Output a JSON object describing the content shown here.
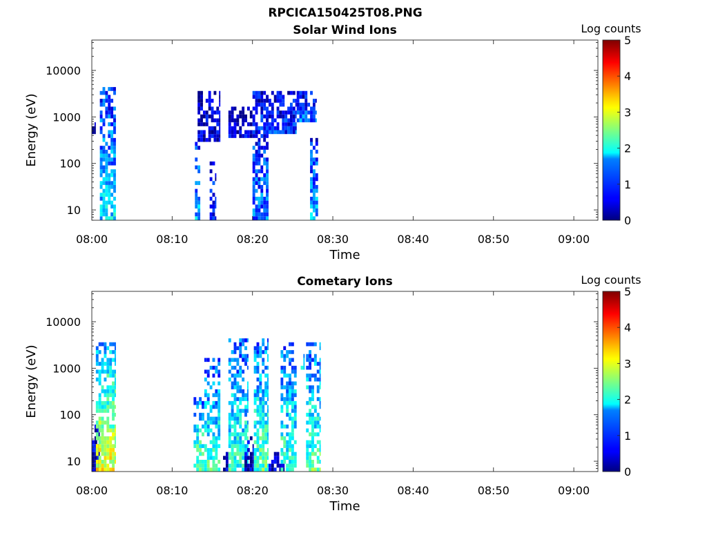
{
  "figure": {
    "title": "RPCICA150425T08.PNG"
  },
  "chart_data": [
    {
      "type": "heatmap",
      "title": "Solar Wind Ions",
      "xlabel": "Time",
      "ylabel": "Energy (eV)",
      "x_scale": "time",
      "y_scale": "log",
      "xlim": [
        "08:00",
        "09:03"
      ],
      "ylim": [
        6,
        45000
      ],
      "x_ticks": [
        "08:00",
        "08:10",
        "08:20",
        "08:30",
        "08:40",
        "08:50",
        "09:00"
      ],
      "y_ticks": [
        10,
        100,
        1000,
        10000
      ],
      "y_tick_labels": [
        "10",
        "100",
        "1000",
        "10000"
      ],
      "colorbar": {
        "label": "Log counts",
        "min": 0,
        "max": 5,
        "ticks": [
          "0",
          "1",
          "2",
          "3",
          "4",
          "5"
        ],
        "colormap": "jet"
      },
      "bursts": [
        {
          "t0": "08:00",
          "t1": "08:00:30",
          "e_min": 500,
          "e_max": 700,
          "level": 0.3
        },
        {
          "t0": "08:01",
          "t1": "08:03",
          "e_min": 6,
          "e_max": 4000,
          "level": 1.6
        },
        {
          "t0": "08:12:50",
          "t1": "08:13:30",
          "e_min": 6,
          "e_max": 300,
          "level": 1.4
        },
        {
          "t0": "08:13:10",
          "t1": "08:16",
          "e_min": 300,
          "e_max": 3000,
          "level": 0.4
        },
        {
          "t0": "08:14:40",
          "t1": "08:15:30",
          "e_min": 6,
          "e_max": 100,
          "level": 0.8
        },
        {
          "t0": "08:17",
          "t1": "08:20",
          "e_min": 400,
          "e_max": 1500,
          "level": 0.4
        },
        {
          "t0": "08:20",
          "t1": "08:22",
          "e_min": 6,
          "e_max": 3000,
          "level": 1.1
        },
        {
          "t0": "08:22",
          "t1": "08:25:30",
          "e_min": 500,
          "e_max": 3000,
          "level": 0.8
        },
        {
          "t0": "08:25:30",
          "t1": "08:28",
          "e_min": 900,
          "e_max": 3000,
          "level": 1.0
        },
        {
          "t0": "08:27:10",
          "t1": "08:28:10",
          "e_min": 6,
          "e_max": 300,
          "level": 1.4
        }
      ]
    },
    {
      "type": "heatmap",
      "title": "Cometary Ions",
      "xlabel": "Time",
      "ylabel": "Energy (eV)",
      "x_scale": "time",
      "y_scale": "log",
      "xlim": [
        "08:00",
        "09:03"
      ],
      "ylim": [
        6,
        45000
      ],
      "x_ticks": [
        "08:00",
        "08:10",
        "08:20",
        "08:30",
        "08:40",
        "08:50",
        "09:00"
      ],
      "y_ticks": [
        10,
        100,
        1000,
        10000
      ],
      "y_tick_labels": [
        "10",
        "100",
        "1000",
        "10000"
      ],
      "colorbar": {
        "label": "Log counts",
        "min": 0,
        "max": 5,
        "ticks": [
          "0",
          "1",
          "2",
          "3",
          "4",
          "5"
        ],
        "colormap": "jet"
      },
      "bursts": [
        {
          "t0": "08:00",
          "t1": "08:01",
          "e_min": 6,
          "e_max": 60,
          "level": 0.4
        },
        {
          "t0": "08:00:30",
          "t1": "08:03",
          "e_min": 6,
          "e_max": 3500,
          "level": 2.9
        },
        {
          "t0": "08:12:40",
          "t1": "08:14",
          "e_min": 6,
          "e_max": 200,
          "level": 2.3
        },
        {
          "t0": "08:14",
          "t1": "08:16",
          "e_min": 6,
          "e_max": 1500,
          "level": 2.0
        },
        {
          "t0": "08:16:20",
          "t1": "08:17",
          "e_min": 6,
          "e_max": 15,
          "level": 0.3
        },
        {
          "t0": "08:17",
          "t1": "08:19:30",
          "e_min": 6,
          "e_max": 4000,
          "level": 2.0
        },
        {
          "t0": "08:19",
          "t1": "08:20:10",
          "e_min": 6,
          "e_max": 30,
          "level": 0.3
        },
        {
          "t0": "08:20:10",
          "t1": "08:22",
          "e_min": 6,
          "e_max": 4000,
          "level": 2.2
        },
        {
          "t0": "08:22",
          "t1": "08:24",
          "e_min": 6,
          "e_max": 15,
          "level": 0.3
        },
        {
          "t0": "08:23:30",
          "t1": "08:25:30",
          "e_min": 6,
          "e_max": 3000,
          "level": 2.1
        },
        {
          "t0": "08:26",
          "t1": "08:26:30",
          "e_min": 1000,
          "e_max": 1800,
          "level": 1.8
        },
        {
          "t0": "08:26:40",
          "t1": "08:28:30",
          "e_min": 6,
          "e_max": 3500,
          "level": 2.2
        }
      ]
    }
  ]
}
